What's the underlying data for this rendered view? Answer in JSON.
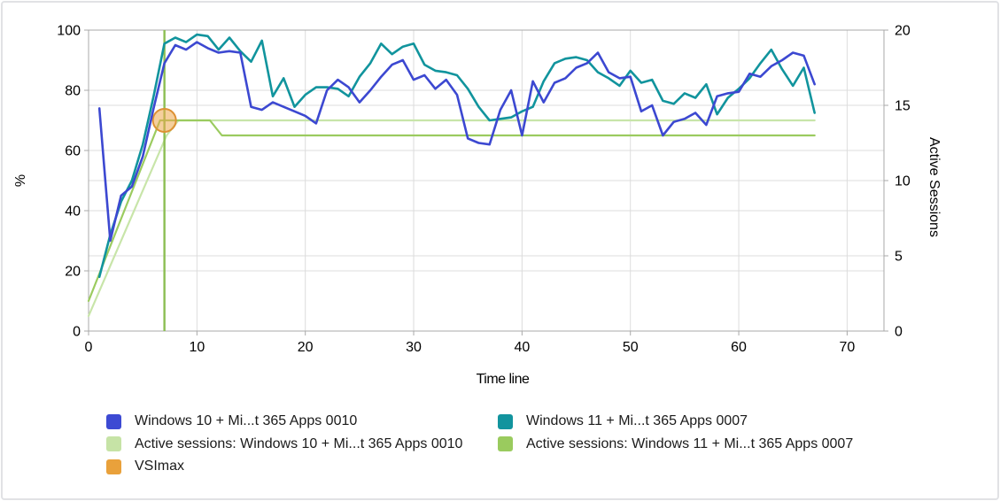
{
  "axes": {
    "x_label": "Time line",
    "y_left_label": "%",
    "y_right_label": "Active Sessions"
  },
  "chart_data": {
    "type": "line",
    "title": "",
    "xlabel": "Time line",
    "ylabel_left": "%",
    "ylabel_right": "Active Sessions",
    "x_ticks": [
      0,
      10,
      20,
      30,
      40,
      50,
      60,
      70
    ],
    "y_left_ticks": [
      0,
      20,
      40,
      60,
      80,
      100
    ],
    "y_right_ticks": [
      0,
      5,
      10,
      15,
      20
    ],
    "y_left_range": [
      0,
      100
    ],
    "y_right_range": [
      0,
      20
    ],
    "t_max": 73.4,
    "grid": true,
    "legend_position": "bottom",
    "series": [
      {
        "name": "Windows 10 + Mi...t 365 Apps 0010",
        "data_name": "cpu-win10-line",
        "axis": "left",
        "color": "#3c48d1",
        "width": 2.6,
        "points": [
          [
            1,
            74
          ],
          [
            2,
            30
          ],
          [
            3,
            45
          ],
          [
            4,
            48
          ],
          [
            5,
            58
          ],
          [
            6,
            74
          ],
          [
            7,
            89
          ],
          [
            8,
            95
          ],
          [
            9,
            93.5
          ],
          [
            10,
            96
          ],
          [
            11,
            94
          ],
          [
            12,
            92.5
          ],
          [
            13,
            93
          ],
          [
            14,
            92.5
          ],
          [
            15,
            74.5
          ],
          [
            16,
            73.5
          ],
          [
            17,
            76
          ],
          [
            18,
            74.5
          ],
          [
            19,
            73
          ],
          [
            20,
            71.5
          ],
          [
            21,
            69
          ],
          [
            22,
            80
          ],
          [
            23,
            83.5
          ],
          [
            24,
            81
          ],
          [
            25,
            76
          ],
          [
            26,
            80
          ],
          [
            27,
            84.5
          ],
          [
            28,
            88.5
          ],
          [
            29,
            90
          ],
          [
            30,
            83.5
          ],
          [
            31,
            85
          ],
          [
            32,
            80.5
          ],
          [
            33,
            83.5
          ],
          [
            34,
            78.5
          ],
          [
            35,
            64
          ],
          [
            36,
            62.5
          ],
          [
            37,
            62
          ],
          [
            38,
            73.5
          ],
          [
            39,
            80
          ],
          [
            40,
            65
          ],
          [
            41,
            83
          ],
          [
            42,
            76
          ],
          [
            43,
            82.5
          ],
          [
            44,
            84
          ],
          [
            45,
            87.5
          ],
          [
            46,
            89
          ],
          [
            47,
            92.5
          ],
          [
            48,
            86
          ],
          [
            49,
            84
          ],
          [
            50,
            84.5
          ],
          [
            51,
            73
          ],
          [
            52,
            75
          ],
          [
            53,
            65
          ],
          [
            54,
            69.5
          ],
          [
            55,
            70.5
          ],
          [
            56,
            72.5
          ],
          [
            57,
            68.5
          ],
          [
            58,
            78
          ],
          [
            59,
            79
          ],
          [
            60,
            79.5
          ],
          [
            61,
            85.5
          ],
          [
            62,
            84.5
          ],
          [
            63,
            88
          ],
          [
            64,
            90
          ],
          [
            65,
            92.5
          ],
          [
            66,
            91.5
          ],
          [
            67,
            82
          ]
        ]
      },
      {
        "name": "Windows 11 + Mi...t 365 Apps 0007",
        "data_name": "cpu-win11-line",
        "axis": "left",
        "color": "#11949d",
        "width": 2.6,
        "points": [
          [
            1,
            18
          ],
          [
            2,
            32
          ],
          [
            3,
            43
          ],
          [
            4,
            50
          ],
          [
            5,
            62
          ],
          [
            6,
            78
          ],
          [
            7,
            95.5
          ],
          [
            8,
            97.5
          ],
          [
            9,
            96
          ],
          [
            10,
            98.5
          ],
          [
            11,
            98
          ],
          [
            12,
            93.5
          ],
          [
            13,
            97.5
          ],
          [
            14,
            93
          ],
          [
            15,
            89.5
          ],
          [
            16,
            96.5
          ],
          [
            17,
            78
          ],
          [
            18,
            84
          ],
          [
            19,
            74.5
          ],
          [
            20,
            78.5
          ],
          [
            21,
            81
          ],
          [
            22,
            81
          ],
          [
            23,
            80.5
          ],
          [
            24,
            78
          ],
          [
            25,
            84.5
          ],
          [
            26,
            89
          ],
          [
            27,
            95.5
          ],
          [
            28,
            92
          ],
          [
            29,
            94.5
          ],
          [
            30,
            95.5
          ],
          [
            31,
            88.5
          ],
          [
            32,
            86.5
          ],
          [
            33,
            86
          ],
          [
            34,
            85
          ],
          [
            35,
            80.5
          ],
          [
            36,
            74.5
          ],
          [
            37,
            70
          ],
          [
            38,
            70.5
          ],
          [
            39,
            71
          ],
          [
            40,
            73
          ],
          [
            41,
            74.5
          ],
          [
            42,
            83
          ],
          [
            43,
            89
          ],
          [
            44,
            90.5
          ],
          [
            45,
            91
          ],
          [
            46,
            90
          ],
          [
            47,
            86
          ],
          [
            48,
            84
          ],
          [
            49,
            81.5
          ],
          [
            50,
            86.5
          ],
          [
            51,
            82.5
          ],
          [
            52,
            83.5
          ],
          [
            53,
            76.5
          ],
          [
            54,
            75.5
          ],
          [
            55,
            79
          ],
          [
            56,
            77.5
          ],
          [
            57,
            82
          ],
          [
            58,
            72
          ],
          [
            59,
            77.5
          ],
          [
            60,
            80.5
          ],
          [
            61,
            84
          ],
          [
            62,
            89
          ],
          [
            63,
            93.5
          ],
          [
            64,
            87
          ],
          [
            65,
            81.5
          ],
          [
            66,
            87.5
          ],
          [
            67,
            72.5
          ]
        ]
      },
      {
        "name": "Active sessions: Windows 10 + Mi...t 365 Apps 0010",
        "data_name": "sessions-win10-line",
        "axis": "right",
        "color": "#c8e5a9",
        "width": 2.2,
        "points": [
          [
            0,
            1
          ],
          [
            7.2,
            13
          ],
          [
            8.3,
            14
          ],
          [
            67,
            14
          ]
        ]
      },
      {
        "name": "Active sessions: Windows 11 + Mi...t 365 Apps 0007",
        "data_name": "sessions-win11-line",
        "axis": "right",
        "color": "#9bcb5f",
        "width": 2.2,
        "points": [
          [
            0,
            2
          ],
          [
            6.6,
            14
          ],
          [
            11.2,
            14
          ],
          [
            12.3,
            13
          ],
          [
            67,
            13
          ]
        ]
      }
    ],
    "vsimax": {
      "label": "VSImax",
      "x": 7,
      "sessions": 14,
      "line_color": "#8cbe52",
      "marker_fill": "rgba(237,168,76,0.55)",
      "marker_stroke": "#dd9134"
    }
  },
  "legend": {
    "items": [
      {
        "label": "Windows 10 + Mi...t 365 Apps 0010",
        "color": "#3d4ad3",
        "col": 1,
        "row": 1
      },
      {
        "label": "Windows 11 + Mi...t 365 Apps 0007",
        "color": "#12949e",
        "col": 2,
        "row": 1
      },
      {
        "label": "Active sessions: Windows 10 + Mi...t 365 Apps 0010",
        "color": "#c6e3a6",
        "col": 1,
        "row": 2
      },
      {
        "label": "Active sessions: Windows 11 + Mi...t 365 Apps 0007",
        "color": "#9acb5e",
        "col": 2,
        "row": 2
      },
      {
        "label": "VSImax",
        "color": "#e9a13b",
        "col": 1,
        "row": 3
      }
    ]
  }
}
